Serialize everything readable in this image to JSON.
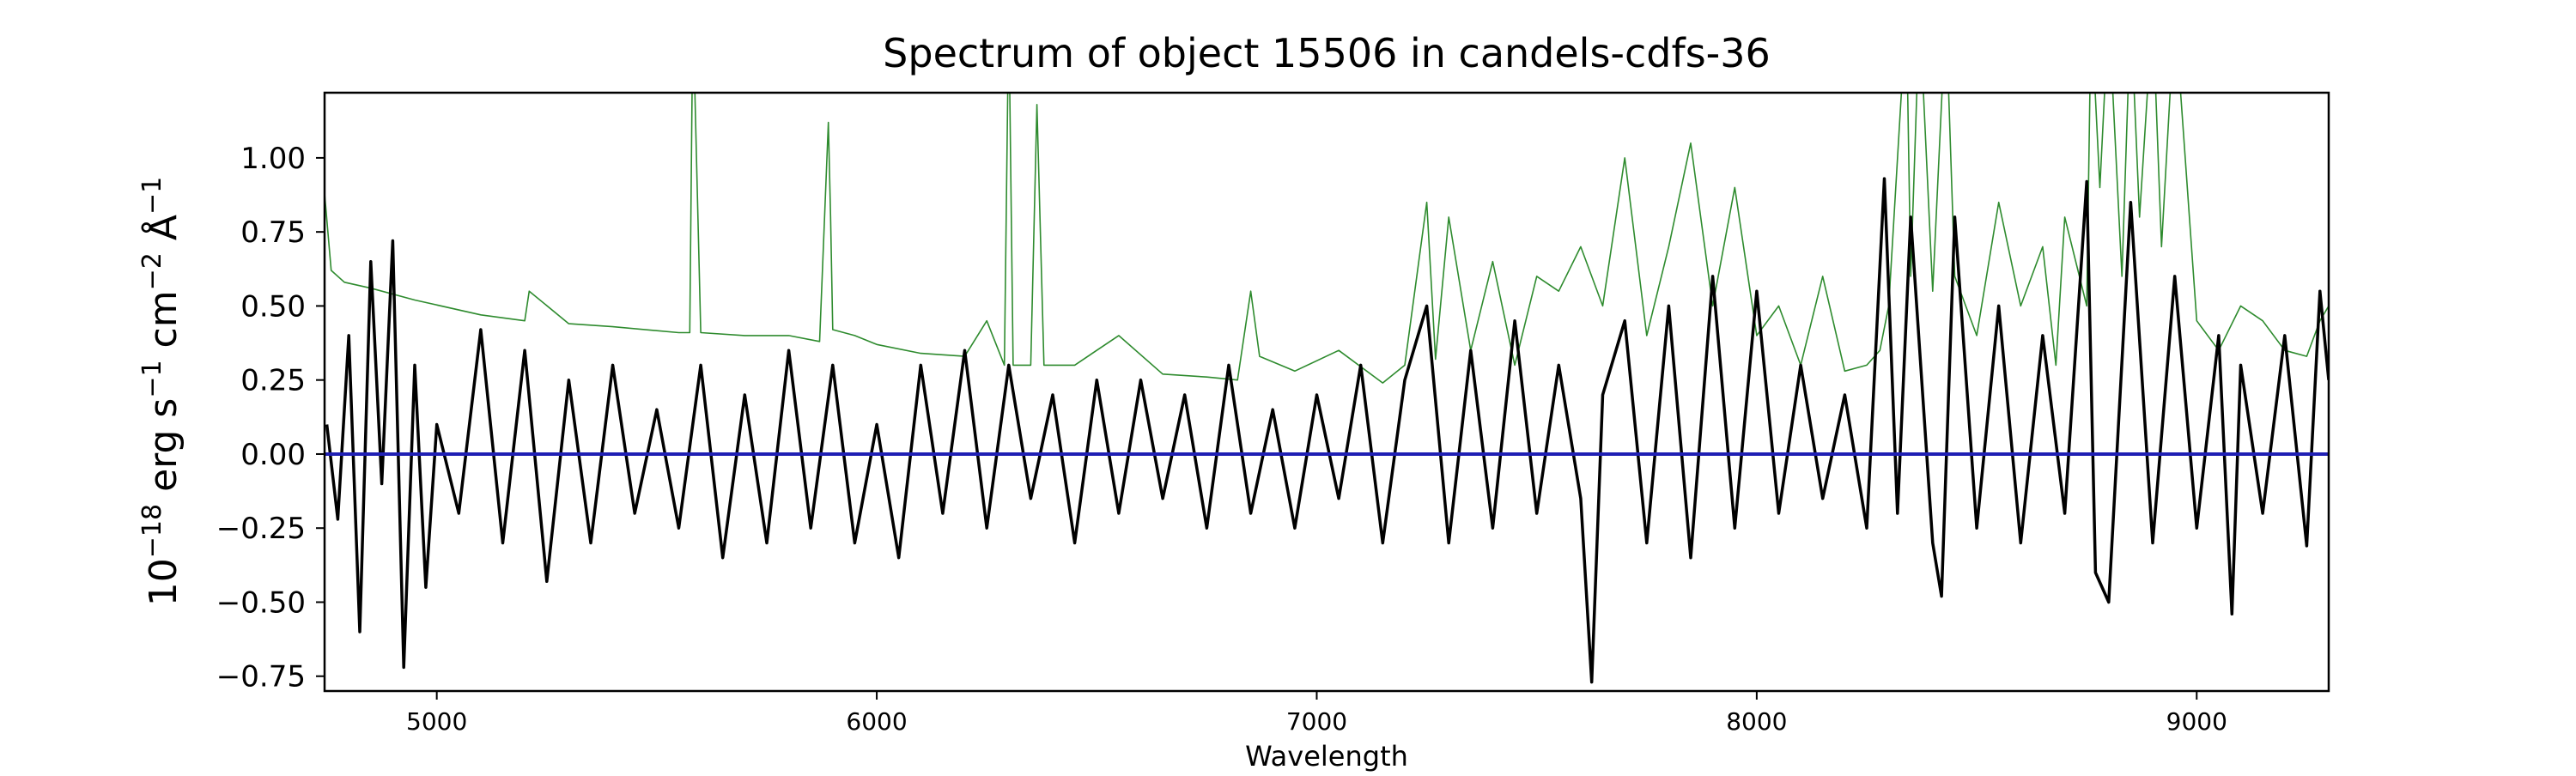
{
  "chart_data": {
    "type": "line",
    "title": "Spectrum of object 15506 in candels-cdfs-36",
    "xlabel": "Wavelength",
    "ylabel_base": "10",
    "ylabel_exp": "−18",
    "ylabel_erg": "erg s",
    "ylabel_exp1": "−1",
    "ylabel_cm": "cm",
    "ylabel_exp2": "−2",
    "ylabel_ang": "Å",
    "ylabel_exp3": "−1",
    "xlim": [
      4745,
      9300
    ],
    "ylim": [
      -0.8,
      1.22
    ],
    "xticks": [
      5000,
      6000,
      7000,
      8000,
      9000
    ],
    "xtick_labels": [
      "5000",
      "6000",
      "7000",
      "8000",
      "9000"
    ],
    "yticks": [
      -0.75,
      -0.5,
      -0.25,
      0.0,
      0.25,
      0.5,
      0.75,
      1.0
    ],
    "ytick_labels": [
      "−0.75",
      "−0.50",
      "−0.25",
      "0.00",
      "0.25",
      "0.50",
      "0.75",
      "1.00"
    ],
    "grid": false,
    "series": [
      {
        "key": "flux",
        "color": "#000000",
        "x": [
          4750,
          4775,
          4800,
          4825,
          4850,
          4875,
          4900,
          4925,
          4950,
          4975,
          5000,
          5050,
          5100,
          5150,
          5200,
          5250,
          5300,
          5350,
          5400,
          5450,
          5500,
          5550,
          5600,
          5650,
          5700,
          5750,
          5800,
          5850,
          5900,
          5950,
          6000,
          6050,
          6100,
          6150,
          6200,
          6250,
          6300,
          6350,
          6400,
          6450,
          6500,
          6550,
          6600,
          6650,
          6700,
          6750,
          6800,
          6850,
          6900,
          6950,
          7000,
          7050,
          7100,
          7150,
          7200,
          7250,
          7300,
          7350,
          7400,
          7450,
          7500,
          7550,
          7600,
          7625,
          7650,
          7700,
          7750,
          7800,
          7850,
          7900,
          7950,
          8000,
          8050,
          8100,
          8150,
          8200,
          8250,
          8290,
          8320,
          8350,
          8400,
          8420,
          8450,
          8500,
          8550,
          8600,
          8650,
          8700,
          8750,
          8770,
          8800,
          8850,
          8900,
          8950,
          9000,
          9050,
          9080,
          9100,
          9150,
          9200,
          9250,
          9280,
          9300
        ],
        "y": [
          0.1,
          -0.22,
          0.4,
          -0.6,
          0.65,
          -0.1,
          0.72,
          -0.72,
          0.3,
          -0.45,
          0.1,
          -0.2,
          0.42,
          -0.3,
          0.35,
          -0.43,
          0.25,
          -0.3,
          0.3,
          -0.2,
          0.15,
          -0.25,
          0.3,
          -0.35,
          0.2,
          -0.3,
          0.35,
          -0.25,
          0.3,
          -0.3,
          0.1,
          -0.35,
          0.3,
          -0.2,
          0.35,
          -0.25,
          0.3,
          -0.15,
          0.2,
          -0.3,
          0.25,
          -0.2,
          0.25,
          -0.15,
          0.2,
          -0.25,
          0.3,
          -0.2,
          0.15,
          -0.25,
          0.2,
          -0.15,
          0.3,
          -0.3,
          0.25,
          0.5,
          -0.3,
          0.35,
          -0.25,
          0.45,
          -0.2,
          0.3,
          -0.15,
          -0.77,
          0.2,
          0.45,
          -0.3,
          0.5,
          -0.35,
          0.6,
          -0.25,
          0.55,
          -0.2,
          0.3,
          -0.15,
          0.2,
          -0.25,
          0.93,
          -0.2,
          0.8,
          -0.3,
          -0.48,
          0.8,
          -0.25,
          0.5,
          -0.3,
          0.4,
          -0.2,
          0.92,
          -0.4,
          -0.5,
          0.85,
          -0.3,
          0.6,
          -0.25,
          0.4,
          -0.54,
          0.3,
          -0.2,
          0.4,
          -0.31,
          0.55,
          0.25
        ]
      },
      {
        "key": "error",
        "color": "#2e8b2e",
        "x": [
          4745,
          4760,
          4790,
          4850,
          4950,
          5100,
          5200,
          5210,
          5300,
          5400,
          5550,
          5575,
          5582,
          5600,
          5700,
          5800,
          5870,
          5890,
          5895,
          5900,
          5950,
          6000,
          6100,
          6200,
          6250,
          6290,
          6300,
          6310,
          6350,
          6364,
          6380,
          6450,
          6550,
          6650,
          6750,
          6820,
          6850,
          6870,
          6950,
          7050,
          7150,
          7200,
          7250,
          7270,
          7300,
          7350,
          7400,
          7450,
          7500,
          7550,
          7600,
          7650,
          7700,
          7750,
          7800,
          7850,
          7900,
          7950,
          8000,
          8050,
          8100,
          8150,
          8200,
          8250,
          8280,
          8300,
          8340,
          8350,
          8370,
          8400,
          8430,
          8450,
          8500,
          8550,
          8600,
          8650,
          8680,
          8700,
          8750,
          8760,
          8780,
          8800,
          8830,
          8850,
          8870,
          8900,
          8920,
          8950,
          9000,
          9050,
          9100,
          9150,
          9200,
          9250,
          9280,
          9300
        ],
        "y": [
          0.88,
          0.62,
          0.58,
          0.56,
          0.52,
          0.47,
          0.45,
          0.55,
          0.44,
          0.43,
          0.41,
          0.41,
          1.5,
          0.41,
          0.4,
          0.4,
          0.38,
          1.12,
          0.8,
          0.42,
          0.4,
          0.37,
          0.34,
          0.33,
          0.45,
          0.3,
          1.5,
          0.3,
          0.3,
          1.18,
          0.3,
          0.3,
          0.4,
          0.27,
          0.26,
          0.25,
          0.55,
          0.33,
          0.28,
          0.35,
          0.24,
          0.3,
          0.85,
          0.32,
          0.8,
          0.35,
          0.65,
          0.3,
          0.6,
          0.55,
          0.7,
          0.5,
          1.0,
          0.4,
          0.7,
          1.05,
          0.5,
          0.9,
          0.4,
          0.5,
          0.3,
          0.6,
          0.28,
          0.3,
          0.35,
          0.5,
          1.5,
          0.6,
          1.5,
          0.55,
          1.5,
          0.6,
          0.4,
          0.85,
          0.5,
          0.7,
          0.3,
          0.8,
          0.5,
          1.5,
          0.9,
          1.5,
          0.6,
          1.5,
          0.8,
          1.5,
          0.7,
          1.5,
          0.45,
          0.35,
          0.5,
          0.45,
          0.35,
          0.33,
          0.45,
          0.5
        ]
      },
      {
        "key": "zero",
        "color": "#1f1fb4",
        "x": [
          4745,
          9300
        ],
        "y": [
          0.0,
          0.0
        ]
      }
    ]
  }
}
